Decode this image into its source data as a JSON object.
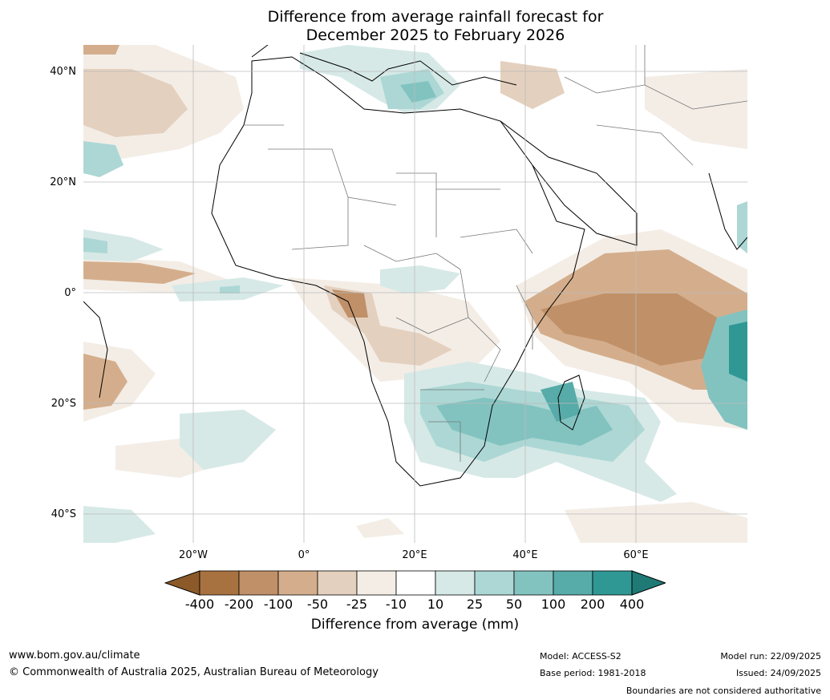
{
  "title_line1": "Difference from average rainfall forecast for",
  "title_line2": "December 2025 to February 2026",
  "lat_labels": [
    "40°N",
    "20°N",
    "0°",
    "20°S",
    "40°S"
  ],
  "lon_labels": [
    "20°W",
    "0°",
    "20°E",
    "40°E",
    "60°E"
  ],
  "colorbar": {
    "ticks": [
      "-400",
      "-200",
      "-100",
      "-50",
      "-25",
      "-10",
      "10",
      "25",
      "50",
      "100",
      "200",
      "400"
    ],
    "colors": [
      "#8c5a28",
      "#a87240",
      "#c09068",
      "#d4ae8c",
      "#e4d0be",
      "#f3ede6",
      "#ffffff",
      "#d6e9e7",
      "#acd7d4",
      "#82c3c0",
      "#57aba8",
      "#2f9894",
      "#1f7a76"
    ],
    "label": "Difference from average (mm)"
  },
  "footer": {
    "website": "www.bom.gov.au/climate",
    "copyright": "© Commonwealth of Australia 2025, Australian Bureau of Meteorology",
    "model": "Model: ACCESS-S2",
    "base_period": "Base period: 1981-2018",
    "model_run": "Model run: 22/09/2025",
    "issued": "Issued: 24/09/2025",
    "disclaimer": "Boundaries are not considered authoritative"
  }
}
